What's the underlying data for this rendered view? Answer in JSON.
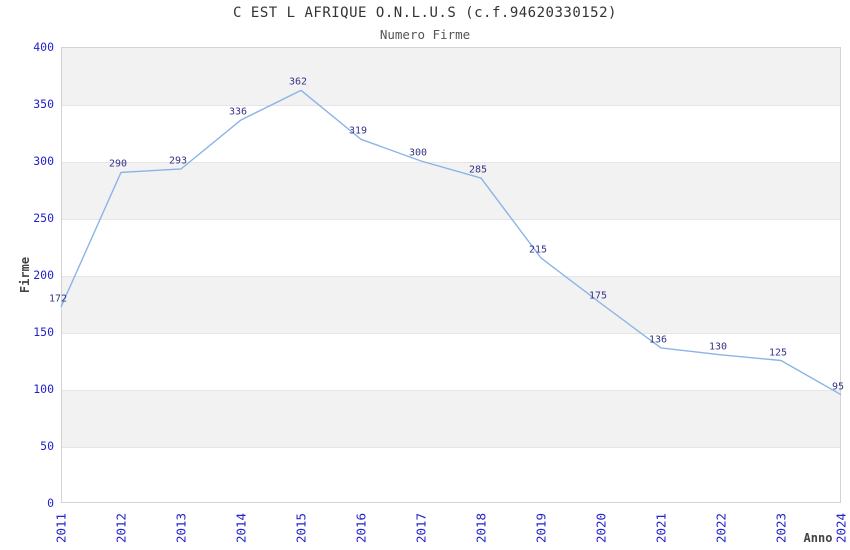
{
  "chart_data": {
    "type": "line",
    "title": "C EST L AFRIQUE O.N.L.U.S (c.f.94620330152)",
    "subtitle": "Numero Firme",
    "xlabel": "Anno",
    "ylabel": "Firme",
    "categories": [
      "2011",
      "2012",
      "2013",
      "2014",
      "2015",
      "2016",
      "2017",
      "2018",
      "2019",
      "2020",
      "2021",
      "2022",
      "2023",
      "2024"
    ],
    "values": [
      172,
      290,
      293,
      336,
      362,
      319,
      300,
      285,
      215,
      175,
      136,
      130,
      125,
      95
    ],
    "yticks": [
      0,
      50,
      100,
      150,
      200,
      250,
      300,
      350,
      400
    ],
    "ylim": [
      0,
      400
    ],
    "grid": "alternating-horizontal-bands",
    "legend": "none",
    "data_labels_visible": true,
    "colors": {
      "line": "#8ab4e8",
      "tick_label": "#2222cc",
      "data_label": "#333388",
      "band_fill": "#f2f2f2",
      "gridline": "#e5e5e5",
      "plot_border": "#d3d3d3",
      "title": "#333333",
      "subtitle": "#555555",
      "axis_title": "#444444"
    }
  }
}
